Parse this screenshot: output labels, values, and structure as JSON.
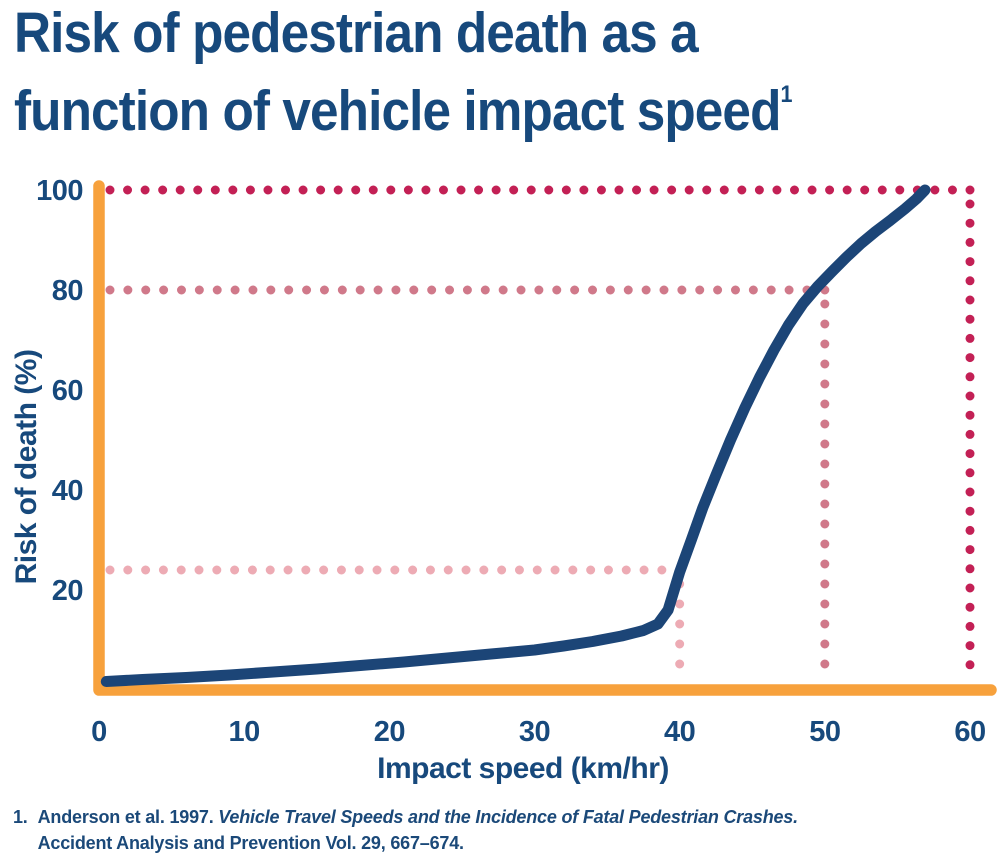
{
  "title": {
    "line1": "Risk of pedestrian death as a",
    "line2": "function of vehicle impact speed",
    "superscript": "1"
  },
  "footnote": {
    "marker": "1.",
    "citation_prefix": "Anderson et al. 1997. ",
    "citation_italic": "Vehicle Travel Speeds and the Incidence of Fatal Pedestrian Crashes.",
    "citation_line2": "Accident Analysis and Prevention Vol. 29, 667–674."
  },
  "colors": {
    "navy_text": "#17497C",
    "curve_navy": "#1C4577",
    "axis_orange": "#F7A13C",
    "ref_crimson": "#C32055",
    "ref_rose": "#D0798A",
    "ref_light_pink": "#EDABB4",
    "background": "#FFFFFF"
  },
  "chart_data": {
    "type": "line",
    "title": "Risk of pedestrian death as a function of vehicle impact speed",
    "xlabel": "Impact speed (km/hr)",
    "ylabel": "Risk of death (%)",
    "xlim": [
      0,
      60
    ],
    "ylim": [
      0,
      100
    ],
    "x_ticks": [
      0,
      10,
      20,
      30,
      40,
      50,
      60
    ],
    "y_ticks": [
      20,
      40,
      60,
      80,
      100
    ],
    "grid": false,
    "legend": "none",
    "series": [
      {
        "name": "Risk of death",
        "color": "#1C4577",
        "points": [
          [
            0.5,
            1.7
          ],
          [
            3,
            2.1
          ],
          [
            6,
            2.5
          ],
          [
            9,
            3.0
          ],
          [
            12,
            3.6
          ],
          [
            15,
            4.2
          ],
          [
            18,
            4.9
          ],
          [
            21,
            5.6
          ],
          [
            24,
            6.4
          ],
          [
            27,
            7.2
          ],
          [
            30,
            8.0
          ],
          [
            32,
            8.8
          ],
          [
            34,
            9.7
          ],
          [
            36,
            10.8
          ],
          [
            37.5,
            11.9
          ],
          [
            38.5,
            13.2
          ],
          [
            39.2,
            16.0
          ],
          [
            40,
            23.6
          ],
          [
            40.8,
            30.0
          ],
          [
            41.6,
            36.5
          ],
          [
            42.5,
            43.0
          ],
          [
            43.5,
            50.0
          ],
          [
            44.5,
            56.5
          ],
          [
            45.5,
            62.5
          ],
          [
            46.5,
            68.0
          ],
          [
            47.5,
            73.0
          ],
          [
            48.5,
            77.3
          ],
          [
            49.5,
            80.7
          ],
          [
            50.5,
            83.7
          ],
          [
            51.5,
            86.6
          ],
          [
            52.5,
            89.3
          ],
          [
            53.5,
            91.7
          ],
          [
            54.5,
            93.9
          ],
          [
            55.5,
            96.2
          ],
          [
            56.3,
            98.2
          ],
          [
            56.9,
            100
          ]
        ]
      }
    ],
    "reference_lines": [
      {
        "speed": 40,
        "risk": 24,
        "color": "#EDABB4"
      },
      {
        "speed": 50,
        "risk": 80,
        "color": "#D0798A"
      },
      {
        "speed": 60,
        "risk": 100,
        "color": "#C32055"
      }
    ]
  }
}
